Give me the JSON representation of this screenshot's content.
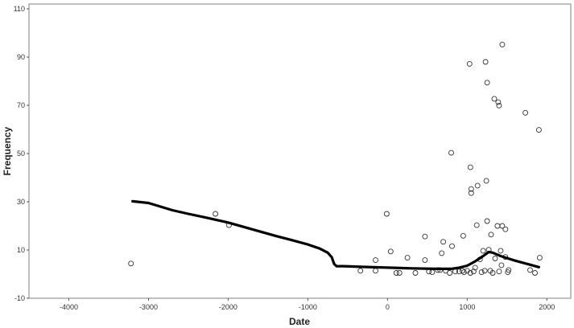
{
  "chart_data": {
    "type": "scatter",
    "title": "",
    "xlabel": "Date",
    "ylabel": "Frequency",
    "xlim": [
      -4500,
      2300
    ],
    "ylim": [
      -10,
      112
    ],
    "xticks": [
      -4000,
      -3000,
      -2000,
      -1000,
      0,
      1000,
      2000
    ],
    "xtick_labels": [
      "-4000",
      "-3000",
      "-2000",
      "-1000",
      "0",
      "1000",
      "2000"
    ],
    "yticks": [
      -10,
      10,
      30,
      50,
      70,
      90,
      110
    ],
    "ytick_labels": [
      "-10",
      "10",
      "30",
      "50",
      "70",
      "90",
      "110"
    ],
    "grid": false,
    "legend": "none",
    "colors": {
      "points": "#333333",
      "line": "#000000",
      "axis": "#555555"
    },
    "series": [
      {
        "kind": "scatter",
        "points": [
          [
            -3220,
            4.4
          ],
          [
            -2160,
            25
          ],
          [
            -1990,
            20.3
          ],
          [
            -340,
            1.4
          ],
          [
            -150,
            1.4
          ],
          [
            -150,
            5.8
          ],
          [
            -10,
            25
          ],
          [
            40,
            9.4
          ],
          [
            110,
            0.5
          ],
          [
            150,
            0.5
          ],
          [
            250,
            6.8
          ],
          [
            350,
            0.5
          ],
          [
            470,
            5.8
          ],
          [
            470,
            15.6
          ],
          [
            520,
            1.1
          ],
          [
            560,
            0.8
          ],
          [
            630,
            1.7
          ],
          [
            660,
            1.7
          ],
          [
            680,
            8.7
          ],
          [
            700,
            13.4
          ],
          [
            730,
            1.4
          ],
          [
            780,
            0.5
          ],
          [
            800,
            50.3
          ],
          [
            810,
            11.6
          ],
          [
            850,
            1.1
          ],
          [
            900,
            1.1
          ],
          [
            940,
            1.4
          ],
          [
            950,
            15.9
          ],
          [
            960,
            0.8
          ],
          [
            1000,
            1.4
          ],
          [
            1030,
            87.2
          ],
          [
            1040,
            0.5
          ],
          [
            1040,
            44.3
          ],
          [
            1050,
            35.3
          ],
          [
            1050,
            33.6
          ],
          [
            1080,
            1.1
          ],
          [
            1100,
            2.7
          ],
          [
            1120,
            20.3
          ],
          [
            1130,
            36.7
          ],
          [
            1160,
            6.1
          ],
          [
            1180,
            0.8
          ],
          [
            1200,
            9.7
          ],
          [
            1220,
            1.4
          ],
          [
            1230,
            88
          ],
          [
            1240,
            38.7
          ],
          [
            1250,
            22
          ],
          [
            1250,
            79.4
          ],
          [
            1270,
            10.1
          ],
          [
            1290,
            1.4
          ],
          [
            1300,
            16.4
          ],
          [
            1320,
            0.5
          ],
          [
            1340,
            72.7
          ],
          [
            1350,
            6.5
          ],
          [
            1380,
            20
          ],
          [
            1390,
            71.3
          ],
          [
            1400,
            69.9
          ],
          [
            1400,
            1.1
          ],
          [
            1420,
            9.7
          ],
          [
            1430,
            3.7
          ],
          [
            1440,
            20
          ],
          [
            1440,
            95.2
          ],
          [
            1480,
            7.1
          ],
          [
            1480,
            18.6
          ],
          [
            1510,
            0.8
          ],
          [
            1520,
            1.7
          ],
          [
            1730,
            66.9
          ],
          [
            1790,
            1.7
          ],
          [
            1850,
            0.5
          ],
          [
            1900,
            59.8
          ],
          [
            1910,
            6.8
          ]
        ]
      },
      {
        "kind": "line",
        "points": [
          [
            -3200,
            30.2
          ],
          [
            -3000,
            29.5
          ],
          [
            -2900,
            28.5
          ],
          [
            -2700,
            26.5
          ],
          [
            -2500,
            25
          ],
          [
            -2300,
            23.6
          ],
          [
            -2000,
            21.4
          ],
          [
            -1700,
            18.6
          ],
          [
            -1400,
            15.8
          ],
          [
            -1200,
            14.1
          ],
          [
            -1000,
            12.3
          ],
          [
            -850,
            10.6
          ],
          [
            -750,
            8.9
          ],
          [
            -700,
            7
          ],
          [
            -670,
            4.2
          ],
          [
            -640,
            3.3
          ],
          [
            -550,
            3.3
          ],
          [
            -300,
            3
          ],
          [
            0,
            2.7
          ],
          [
            300,
            2.4
          ],
          [
            600,
            2.2
          ],
          [
            800,
            2.2
          ],
          [
            900,
            2.7
          ],
          [
            1000,
            3.5
          ],
          [
            1100,
            5.3
          ],
          [
            1200,
            7.5
          ],
          [
            1270,
            9.2
          ],
          [
            1320,
            8.9
          ],
          [
            1420,
            7.5
          ],
          [
            1600,
            5.6
          ],
          [
            1800,
            3.8
          ],
          [
            1900,
            2.9
          ]
        ]
      }
    ]
  }
}
